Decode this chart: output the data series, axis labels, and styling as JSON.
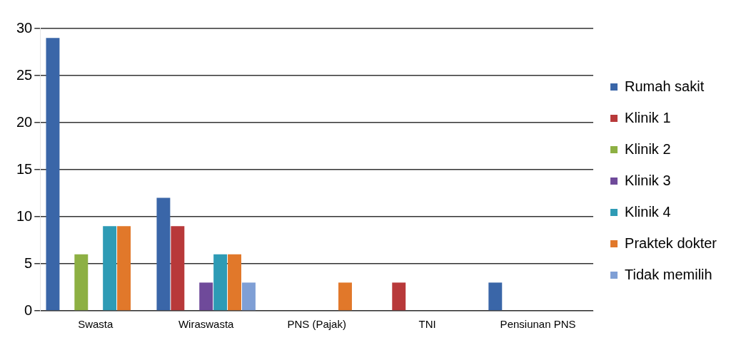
{
  "chart_data": {
    "type": "bar",
    "categories": [
      "Swasta",
      "Wiraswasta",
      "PNS (Pajak)",
      "TNI",
      "Pensiunan PNS"
    ],
    "series": [
      {
        "name": "Rumah sakit",
        "color": "#3a66a8",
        "values": [
          29,
          12,
          0,
          0,
          3
        ]
      },
      {
        "name": "Klinik 1",
        "color": "#b8393a",
        "values": [
          0,
          9,
          0,
          3,
          0
        ]
      },
      {
        "name": "Klinik 2",
        "color": "#8db043",
        "values": [
          6,
          0,
          0,
          0,
          0
        ]
      },
      {
        "name": "Klinik 3",
        "color": "#6f4a9a",
        "values": [
          0,
          3,
          0,
          0,
          0
        ]
      },
      {
        "name": "Klinik 4",
        "color": "#2e9bb5",
        "values": [
          9,
          6,
          0,
          0,
          0
        ]
      },
      {
        "name": "Praktek dokter",
        "color": "#e1782a",
        "values": [
          9,
          6,
          3,
          0,
          0
        ]
      },
      {
        "name": "Tidak memilih",
        "color": "#7f9fd5",
        "values": [
          0,
          3,
          0,
          0,
          0
        ]
      }
    ],
    "ylim": [
      0,
      30
    ],
    "yticks": [
      0,
      5,
      10,
      15,
      20,
      25,
      30
    ],
    "grid": "y",
    "legend": "right"
  }
}
